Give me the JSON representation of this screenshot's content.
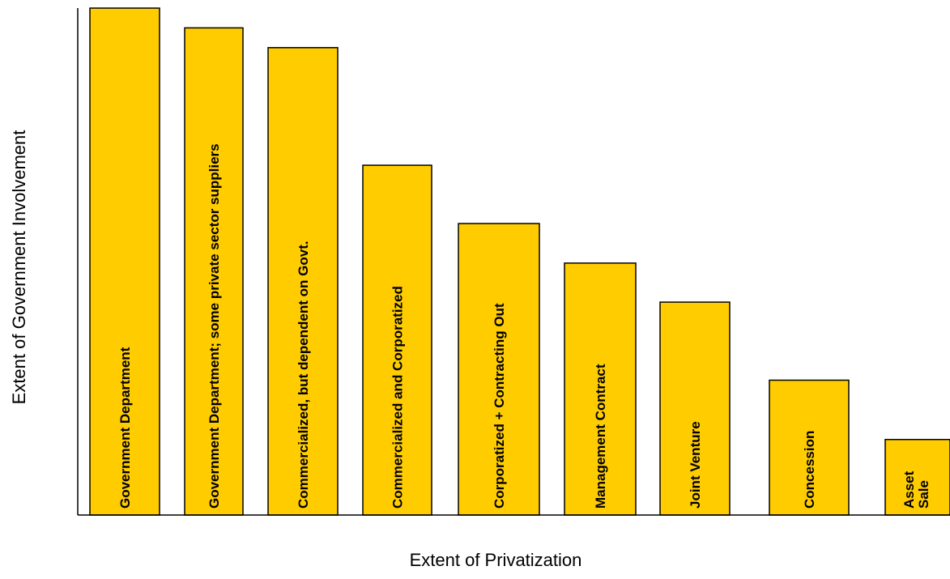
{
  "chart_data": {
    "type": "bar",
    "title": "",
    "xlabel": "Extent of Privatization",
    "ylabel": "Extent of Government Involvement",
    "ylim": [
      0,
      100
    ],
    "grid": false,
    "legend": "none",
    "bar_color": "#FFCC00",
    "bar_stroke": "#000000",
    "categories": [
      "Government Department",
      "Government Department; some private sector suppliers",
      "Commercialized, but dependent on Govt.",
      "Commercialized and Corporatized",
      "Corporatized + Contracting Out",
      "Management Contract",
      "Joint Venture",
      "Concession",
      "Asset Sale"
    ],
    "values": [
      100,
      96.1,
      92.2,
      69.0,
      57.5,
      49.7,
      42.0,
      26.6,
      14.9
    ]
  }
}
